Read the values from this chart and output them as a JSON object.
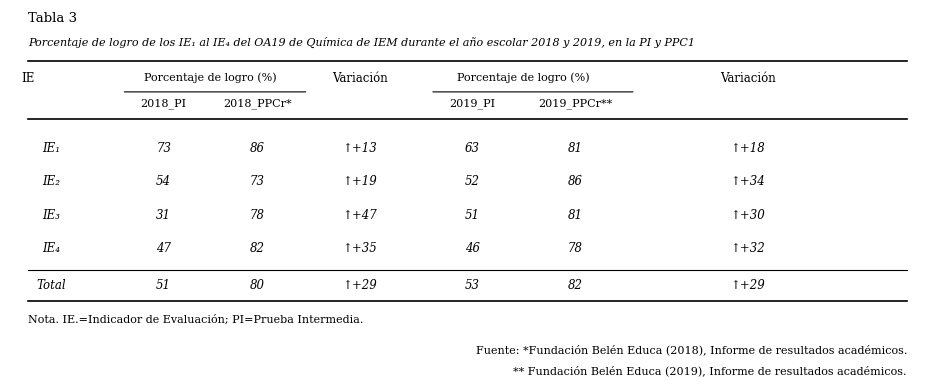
{
  "tabla_title": "Tabla 3",
  "subtitle": "Porcentaje de logro de los IE₁ al IE₄ del OA19 de Química de IEM durante el año escolar 2018 y 2019, en la PI y PPC1",
  "col_headers": [
    "IE",
    "2018_PI",
    "2018_PPCr*",
    "Variación",
    "2019_PI",
    "2019_PPCr**",
    "Variación"
  ],
  "group_headers": [
    "Porcentaje de logro (%)",
    "Porcentaje de logro (%)"
  ],
  "rows": [
    [
      "IE₁",
      "73",
      "86",
      "↑+13",
      "63",
      "81",
      "↑+18"
    ],
    [
      "IE₂",
      "54",
      "73",
      "↑+19",
      "52",
      "86",
      "↑+34"
    ],
    [
      "IE₃",
      "31",
      "78",
      "↑+47",
      "51",
      "81",
      "↑+30"
    ],
    [
      "IE₄",
      "47",
      "82",
      "↑+35",
      "46",
      "78",
      "↑+32"
    ]
  ],
  "total_row": [
    "Total",
    "51",
    "80",
    "↑+29",
    "53",
    "82",
    "↑+29"
  ],
  "nota": "Nota. IE.=Indicador de Evaluación; PI=Prueba Intermedia.",
  "fuente1": "Fuente: *Fundación Belén Educa (2018), Informe de resultados académicos.",
  "fuente2": "** Fundación Belén Educa (2019), Informe de resultados académicos.",
  "bg_color": "#ffffff",
  "text_color": "#000000"
}
